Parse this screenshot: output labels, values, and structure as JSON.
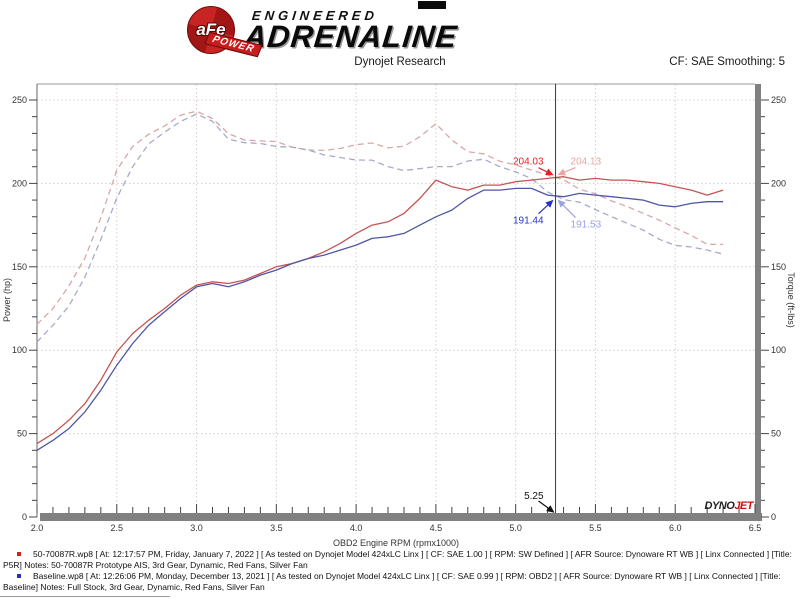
{
  "header": {
    "logo_text": "aFe",
    "logo_sub": "POWER",
    "brand_small": "ENGINEERED",
    "brand_large": "ADRENALINE",
    "subtitle": "Dynojet Research",
    "correction": "CF: SAE Smoothing: 5"
  },
  "chart_data": {
    "type": "line",
    "xlabel": "OBD2 Engine RPM (rpmx1000)",
    "ylabel_left": "Power (hp)",
    "ylabel_right": "Torque (ft-lbs)",
    "xlim": [
      2.0,
      6.5
    ],
    "ylim": [
      0,
      259
    ],
    "x_ticks": [
      2.0,
      2.5,
      3.0,
      3.5,
      4.0,
      4.5,
      5.0,
      5.5,
      6.0,
      6.5
    ],
    "y_ticks": [
      0,
      50,
      100,
      150,
      200,
      250
    ],
    "grid": true,
    "x": [
      2.0,
      2.1,
      2.2,
      2.3,
      2.4,
      2.5,
      2.6,
      2.7,
      2.8,
      2.9,
      3.0,
      3.1,
      3.2,
      3.3,
      3.4,
      3.5,
      3.6,
      3.7,
      3.8,
      3.9,
      4.0,
      4.1,
      4.2,
      4.3,
      4.4,
      4.5,
      4.6,
      4.7,
      4.8,
      4.9,
      5.0,
      5.1,
      5.2,
      5.3,
      5.4,
      5.5,
      5.6,
      5.7,
      5.8,
      5.9,
      6.0,
      6.1,
      6.2,
      6.3
    ],
    "series": [
      {
        "name": "50-70087R torque (ft-lbs)",
        "style": "dashed",
        "color": "#d9a7a7",
        "values": [
          115.5,
          125.0,
          138.5,
          155.3,
          179.4,
          208.0,
          222.2,
          229.5,
          234.5,
          240.9,
          243.3,
          238.9,
          229.8,
          226.0,
          225.5,
          225.1,
          221.7,
          220.0,
          219.8,
          220.9,
          223.2,
          224.2,
          221.3,
          222.3,
          228.0,
          235.8,
          226.1,
          219.0,
          217.7,
          213.3,
          211.1,
          208.0,
          205.0,
          202.2,
          196.5,
          193.8,
          189.5,
          186.1,
          182.0,
          178.0,
          173.3,
          168.8,
          163.5,
          163.4
        ]
      },
      {
        "name": "Baseline torque (ft-lbs)",
        "style": "dashed",
        "color": "#a7abc9",
        "values": [
          105.0,
          115.0,
          126.5,
          143.9,
          166.3,
          191.2,
          210.1,
          223.7,
          230.7,
          237.2,
          241.6,
          237.2,
          226.5,
          224.4,
          224.0,
          222.1,
          221.7,
          220.0,
          217.0,
          215.5,
          214.0,
          213.9,
          210.1,
          207.7,
          208.9,
          210.1,
          210.1,
          213.4,
          214.5,
          210.1,
          206.9,
          202.9,
          194.9,
          190.3,
          188.7,
          184.3,
          180.1,
          176.0,
          172.0,
          166.5,
          162.8,
          161.9,
          160.1,
          157.6
        ]
      },
      {
        "name": "50-70087R power (hp)",
        "style": "solid",
        "color": "#c65454",
        "values": [
          44,
          50,
          58,
          68,
          82,
          99,
          110,
          118,
          125,
          133,
          139,
          141,
          140,
          142,
          146,
          150,
          152,
          155,
          159,
          164,
          170,
          175,
          177,
          182,
          191,
          202,
          198,
          196,
          199,
          199,
          201,
          202,
          203,
          204,
          202,
          203,
          202,
          202,
          201,
          200,
          198,
          196,
          193,
          196
        ]
      },
      {
        "name": "Baseline power (hp)",
        "style": "solid",
        "color": "#4f56a6",
        "values": [
          40,
          46,
          53,
          63,
          76,
          91,
          104,
          115,
          123,
          131,
          138,
          140,
          138,
          141,
          145,
          148,
          152,
          155,
          157,
          160,
          163,
          167,
          168,
          170,
          175,
          180,
          184,
          191,
          196,
          196,
          197,
          197,
          193,
          192,
          194,
          193,
          192,
          191,
          190,
          187,
          186,
          188,
          189,
          189
        ]
      }
    ],
    "cursor": {
      "rpm": 5.25,
      "label": "5.25"
    },
    "annotations": [
      {
        "label": "204.03",
        "value": 204.03,
        "series": "50-70087R power",
        "color": "#e02424",
        "placement": "left-above"
      },
      {
        "label": "204.13",
        "value": 204.13,
        "series": "50-70087R torque",
        "color": "#eda4a4",
        "placement": "right-above"
      },
      {
        "label": "191.44",
        "value": 191.44,
        "series": "Baseline power",
        "color": "#2433cc",
        "placement": "left-below"
      },
      {
        "label": "191.53",
        "value": 191.53,
        "series": "Baseline torque",
        "color": "#9aa1e8",
        "placement": "right-below"
      }
    ],
    "watermark": {
      "part1": "DYNO",
      "part2": "JET",
      "color1": "#222222",
      "color2": "#cc1111"
    }
  },
  "legend": {
    "entries": [
      {
        "bullet_color": "#cc2222",
        "text": "50-70087R.wp8 [ At: 12:17:57 PM, Friday, January 7, 2022 ] [ As tested on Dynojet Model 424xLC Linx ] [ CF: SAE 1.00 ] [ RPM: SW Defined ] [ AFR Source: Dynoware RT WB ] [ Linx Connected ] [Title: P5R]  Notes: 50-70087R Prototype AIS, 3rd Gear, Dynamic, Red Fans, Silver Fan"
      },
      {
        "bullet_color": "#2233bb",
        "text": "Baseline.wp8 [ At: 12:26:06 PM, Monday, December 13, 2021 ] [ As tested on Dynojet Model 424xLC Linx ] [ CF: SAE 0.99 ] [ RPM: OBD2 ] [ AFR Source: Dynoware RT WB ] [ Linx Connected ] [Title: Baseline]  Notes: Full Stock, 3rd Gear, Dynamic, Red Fans, Silver Fan"
      }
    ]
  }
}
